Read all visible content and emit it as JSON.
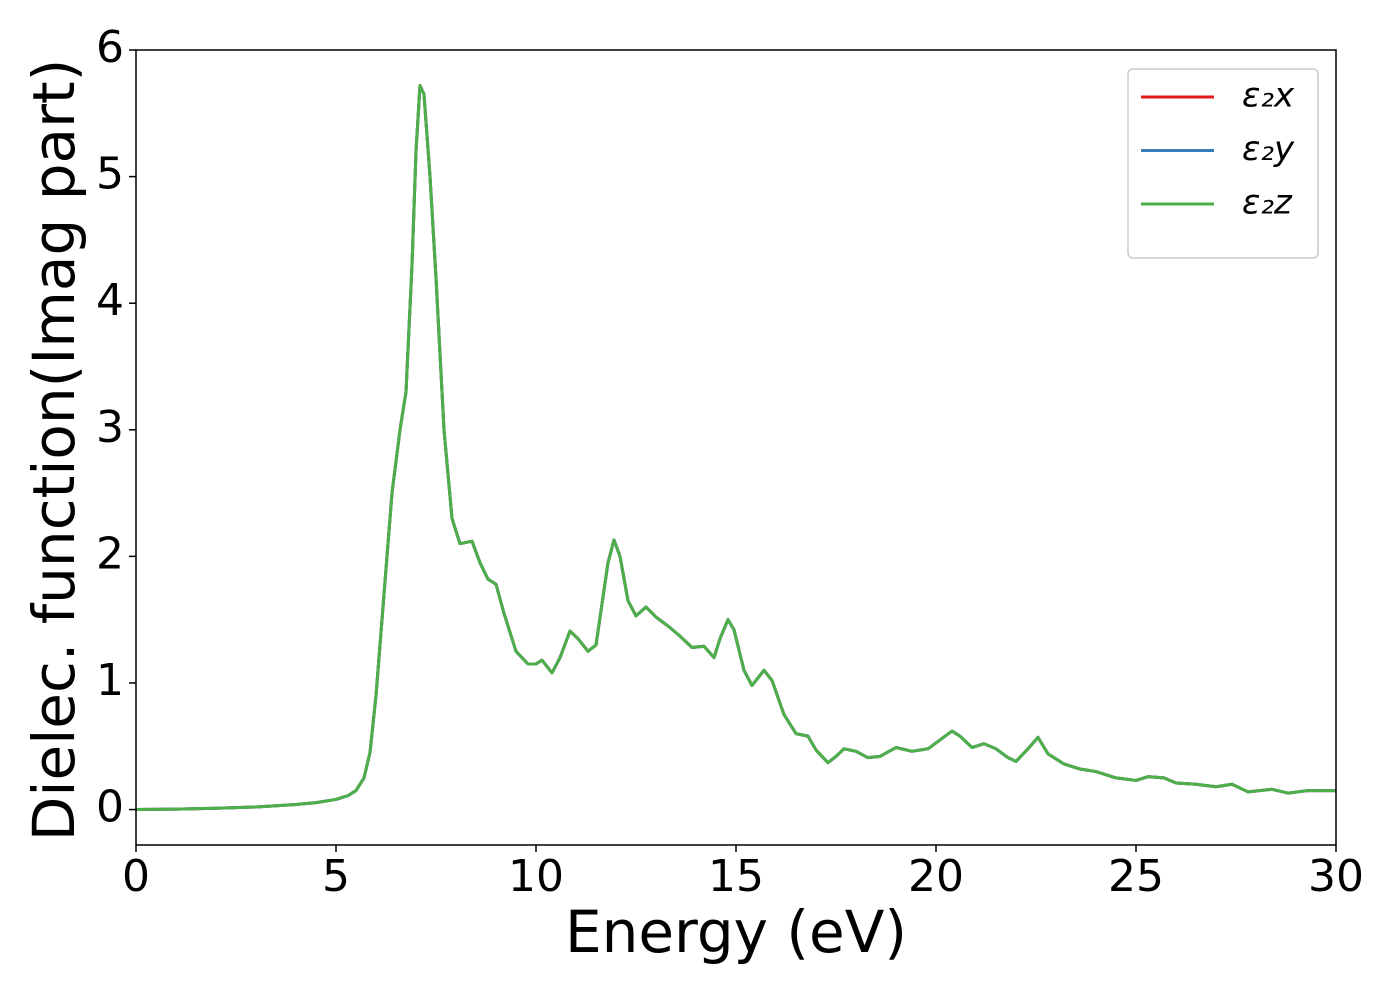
{
  "chart_data": {
    "type": "line",
    "xlabel": "Energy (eV)",
    "ylabel": "Dielec. function(Imag part)",
    "x": [
      0,
      1,
      2,
      3,
      4,
      4.5,
      5,
      5.3,
      5.5,
      5.7,
      5.85,
      6.0,
      6.2,
      6.4,
      6.6,
      6.75,
      6.9,
      7.0,
      7.1,
      7.2,
      7.35,
      7.5,
      7.7,
      7.9,
      8.1,
      8.4,
      8.6,
      8.8,
      9.0,
      9.2,
      9.5,
      9.8,
      10.0,
      10.15,
      10.4,
      10.6,
      10.85,
      11.05,
      11.3,
      11.5,
      11.8,
      11.95,
      12.1,
      12.3,
      12.5,
      12.75,
      13.0,
      13.3,
      13.6,
      13.9,
      14.2,
      14.45,
      14.6,
      14.8,
      14.95,
      15.2,
      15.4,
      15.7,
      15.9,
      16.2,
      16.5,
      16.8,
      17.0,
      17.3,
      17.5,
      17.7,
      18.0,
      18.3,
      18.6,
      19.0,
      19.4,
      19.8,
      20.1,
      20.4,
      20.6,
      20.9,
      21.2,
      21.5,
      21.8,
      22.0,
      22.3,
      22.55,
      22.8,
      23.2,
      23.6,
      24.0,
      24.5,
      25.0,
      25.3,
      25.7,
      26.0,
      26.5,
      27.0,
      27.4,
      27.8,
      28.4,
      28.8,
      29.3,
      30
    ],
    "series": [
      {
        "name": "ε₂x",
        "color": "#e41a1c",
        "values": [
          0,
          0.003,
          0.01,
          0.02,
          0.04,
          0.055,
          0.08,
          0.11,
          0.15,
          0.25,
          0.45,
          0.9,
          1.7,
          2.5,
          3.0,
          3.3,
          4.3,
          5.2,
          5.72,
          5.65,
          5.0,
          4.2,
          3.0,
          2.3,
          2.1,
          2.12,
          1.95,
          1.82,
          1.78,
          1.55,
          1.25,
          1.15,
          1.15,
          1.18,
          1.08,
          1.2,
          1.41,
          1.35,
          1.25,
          1.3,
          1.95,
          2.13,
          2.0,
          1.65,
          1.53,
          1.6,
          1.52,
          1.45,
          1.37,
          1.28,
          1.29,
          1.2,
          1.35,
          1.5,
          1.42,
          1.1,
          0.98,
          1.1,
          1.02,
          0.75,
          0.6,
          0.58,
          0.47,
          0.37,
          0.42,
          0.48,
          0.46,
          0.41,
          0.42,
          0.49,
          0.46,
          0.48,
          0.55,
          0.62,
          0.58,
          0.49,
          0.52,
          0.48,
          0.41,
          0.38,
          0.48,
          0.57,
          0.44,
          0.36,
          0.32,
          0.3,
          0.25,
          0.23,
          0.26,
          0.25,
          0.21,
          0.2,
          0.18,
          0.2,
          0.14,
          0.16,
          0.13,
          0.15,
          0.15
        ]
      },
      {
        "name": "ε₂y",
        "color": "#377eb8",
        "values": [
          0,
          0.003,
          0.01,
          0.02,
          0.04,
          0.055,
          0.08,
          0.11,
          0.15,
          0.25,
          0.45,
          0.9,
          1.7,
          2.5,
          3.0,
          3.3,
          4.3,
          5.2,
          5.72,
          5.65,
          5.0,
          4.2,
          3.0,
          2.3,
          2.1,
          2.12,
          1.95,
          1.82,
          1.78,
          1.55,
          1.25,
          1.15,
          1.15,
          1.18,
          1.08,
          1.2,
          1.41,
          1.35,
          1.25,
          1.3,
          1.95,
          2.13,
          2.0,
          1.65,
          1.53,
          1.6,
          1.52,
          1.45,
          1.37,
          1.28,
          1.29,
          1.2,
          1.35,
          1.5,
          1.42,
          1.1,
          0.98,
          1.1,
          1.02,
          0.75,
          0.6,
          0.58,
          0.47,
          0.37,
          0.42,
          0.48,
          0.46,
          0.41,
          0.42,
          0.49,
          0.46,
          0.48,
          0.55,
          0.62,
          0.58,
          0.49,
          0.52,
          0.48,
          0.41,
          0.38,
          0.48,
          0.57,
          0.44,
          0.36,
          0.32,
          0.3,
          0.25,
          0.23,
          0.26,
          0.25,
          0.21,
          0.2,
          0.18,
          0.2,
          0.14,
          0.16,
          0.13,
          0.15,
          0.15
        ]
      },
      {
        "name": "ε₂z",
        "color": "#4daf4a",
        "values": [
          0,
          0.003,
          0.01,
          0.02,
          0.04,
          0.055,
          0.08,
          0.11,
          0.15,
          0.25,
          0.45,
          0.9,
          1.7,
          2.5,
          3.0,
          3.3,
          4.3,
          5.2,
          5.72,
          5.65,
          5.0,
          4.2,
          3.0,
          2.3,
          2.1,
          2.12,
          1.95,
          1.82,
          1.78,
          1.55,
          1.25,
          1.15,
          1.15,
          1.18,
          1.08,
          1.2,
          1.41,
          1.35,
          1.25,
          1.3,
          1.95,
          2.13,
          2.0,
          1.65,
          1.53,
          1.6,
          1.52,
          1.45,
          1.37,
          1.28,
          1.29,
          1.2,
          1.35,
          1.5,
          1.42,
          1.1,
          0.98,
          1.1,
          1.02,
          0.75,
          0.6,
          0.58,
          0.47,
          0.37,
          0.42,
          0.48,
          0.46,
          0.41,
          0.42,
          0.49,
          0.46,
          0.48,
          0.55,
          0.62,
          0.58,
          0.49,
          0.52,
          0.48,
          0.41,
          0.38,
          0.48,
          0.57,
          0.44,
          0.36,
          0.32,
          0.3,
          0.25,
          0.23,
          0.26,
          0.25,
          0.21,
          0.2,
          0.18,
          0.2,
          0.14,
          0.16,
          0.13,
          0.15,
          0.15
        ]
      }
    ],
    "xlim": [
      0,
      30
    ],
    "xticks": [
      0,
      5,
      10,
      15,
      20,
      25,
      30
    ],
    "ylim": [
      -0.28,
      6
    ],
    "yticks": [
      0,
      1,
      2,
      3,
      4,
      5,
      6
    ],
    "grid": false,
    "legend": "upper right"
  }
}
